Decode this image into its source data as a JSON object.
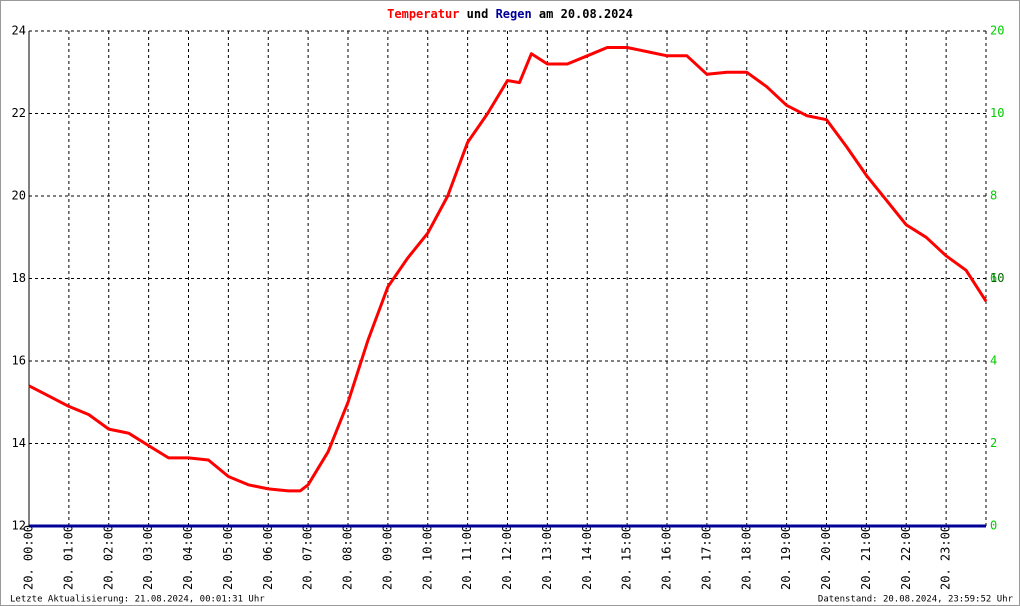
{
  "chart_data": {
    "type": "line",
    "title_parts": [
      "und",
      "am 20.08.2024"
    ],
    "xlim": [
      0,
      24
    ],
    "ylim": [
      12,
      24
    ],
    "y2lim": [
      0,
      12
    ],
    "yticks": [
      12,
      14,
      16,
      18,
      20,
      22,
      24
    ],
    "y2ticks": [
      0,
      2,
      4,
      6,
      8,
      10
    ],
    "y2_extra_labels": [
      "20",
      "10"
    ],
    "xticks": [
      {
        "value": 0,
        "label": "20. 00:00"
      },
      {
        "value": 1,
        "label": "20. 01:00"
      },
      {
        "value": 2,
        "label": "20. 02:00"
      },
      {
        "value": 3,
        "label": "20. 03:00"
      },
      {
        "value": 4,
        "label": "20. 04:00"
      },
      {
        "value": 5,
        "label": "20. 05:00"
      },
      {
        "value": 6,
        "label": "20. 06:00"
      },
      {
        "value": 7,
        "label": "20. 07:00"
      },
      {
        "value": 8,
        "label": "20. 08:00"
      },
      {
        "value": 9,
        "label": "20. 09:00"
      },
      {
        "value": 10,
        "label": "20. 10:00"
      },
      {
        "value": 11,
        "label": "20. 11:00"
      },
      {
        "value": 12,
        "label": "20. 12:00"
      },
      {
        "value": 13,
        "label": "20. 13:00"
      },
      {
        "value": 14,
        "label": "20. 14:00"
      },
      {
        "value": 15,
        "label": "20. 15:00"
      },
      {
        "value": 16,
        "label": "20. 16:00"
      },
      {
        "value": 17,
        "label": "20. 17:00"
      },
      {
        "value": 18,
        "label": "20. 18:00"
      },
      {
        "value": 19,
        "label": "20. 19:00"
      },
      {
        "value": 20,
        "label": "20. 20:00"
      },
      {
        "value": 21,
        "label": "20. 21:00"
      },
      {
        "value": 22,
        "label": "20. 22:00"
      },
      {
        "value": 23,
        "label": "20. 23:00"
      }
    ],
    "grid": true,
    "series": [
      {
        "name": "Temperatur",
        "color": "#ff0000",
        "x": [
          0,
          0.5,
          1,
          1.5,
          2,
          2.5,
          3,
          3.5,
          4,
          4.5,
          5,
          5.5,
          6,
          6.5,
          6.8,
          7,
          7.5,
          8,
          8.5,
          9,
          9.5,
          10,
          10.5,
          11,
          11.5,
          12,
          12.3,
          12.6,
          13,
          13.5,
          14,
          14.5,
          15,
          15.5,
          16,
          16.5,
          17,
          17.5,
          18,
          18.5,
          19,
          19.5,
          20,
          20.5,
          21,
          21.5,
          22,
          22.5,
          23,
          23.5,
          24
        ],
        "values": [
          15.4,
          15.15,
          14.9,
          14.7,
          14.35,
          14.25,
          13.95,
          13.65,
          13.65,
          13.6,
          13.2,
          13.0,
          12.9,
          12.85,
          12.85,
          13.0,
          13.8,
          15.0,
          16.5,
          17.8,
          18.5,
          19.1,
          20.0,
          21.3,
          22.0,
          22.8,
          22.75,
          23.45,
          23.2,
          23.2,
          23.4,
          23.6,
          23.6,
          23.5,
          23.4,
          23.4,
          22.95,
          23.0,
          23.0,
          22.65,
          22.2,
          21.95,
          21.85,
          21.2,
          20.5,
          19.9,
          19.3,
          19.0,
          18.55,
          18.2,
          17.45
        ]
      },
      {
        "name": "Regen",
        "color": "#000099",
        "axis": "y2",
        "x": [
          0,
          24
        ],
        "values": [
          0,
          0
        ]
      }
    ],
    "footer_left": "Letzte Aktualisierung: 21.08.2024, 00:01:31 Uhr",
    "footer_right": "Datenstand: 20.08.2024, 23:59:52 Uhr"
  }
}
